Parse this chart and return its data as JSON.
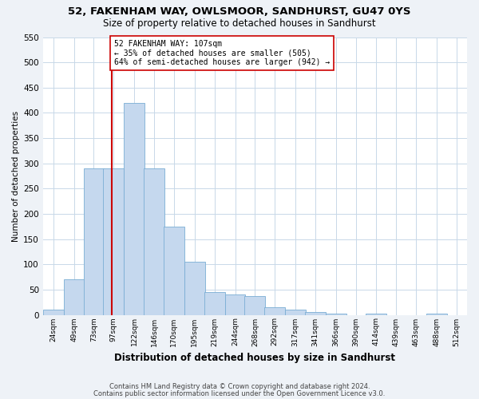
{
  "title": "52, FAKENHAM WAY, OWLSMOOR, SANDHURST, GU47 0YS",
  "subtitle": "Size of property relative to detached houses in Sandhurst",
  "xlabel": "Distribution of detached houses by size in Sandhurst",
  "ylabel": "Number of detached properties",
  "bin_labels": [
    "24sqm",
    "49sqm",
    "73sqm",
    "97sqm",
    "122sqm",
    "146sqm",
    "170sqm",
    "195sqm",
    "219sqm",
    "244sqm",
    "268sqm",
    "292sqm",
    "317sqm",
    "341sqm",
    "366sqm",
    "390sqm",
    "414sqm",
    "439sqm",
    "463sqm",
    "488sqm",
    "512sqm"
  ],
  "bin_edges": [
    24,
    49,
    73,
    97,
    122,
    146,
    170,
    195,
    219,
    244,
    268,
    292,
    317,
    341,
    366,
    390,
    414,
    439,
    463,
    488,
    512
  ],
  "bar_heights": [
    10,
    70,
    290,
    290,
    420,
    290,
    175,
    105,
    45,
    40,
    37,
    15,
    10,
    5,
    2,
    0,
    2,
    0,
    0,
    2,
    0
  ],
  "bar_color": "#c5d8ee",
  "bar_edge_color": "#7aadd4",
  "grid_color": "#c8d8e8",
  "property_line_x": 107,
  "property_line_color": "#cc0000",
  "annotation_text": "52 FAKENHAM WAY: 107sqm\n← 35% of detached houses are smaller (505)\n64% of semi-detached houses are larger (942) →",
  "annotation_box_color": "#ffffff",
  "annotation_box_edge": "#cc0000",
  "ylim": [
    0,
    550
  ],
  "yticks": [
    0,
    50,
    100,
    150,
    200,
    250,
    300,
    350,
    400,
    450,
    500,
    550
  ],
  "footnote1": "Contains HM Land Registry data © Crown copyright and database right 2024.",
  "footnote2": "Contains public sector information licensed under the Open Government Licence v3.0.",
  "bg_color": "#eef2f7",
  "plot_bg_color": "#ffffff"
}
